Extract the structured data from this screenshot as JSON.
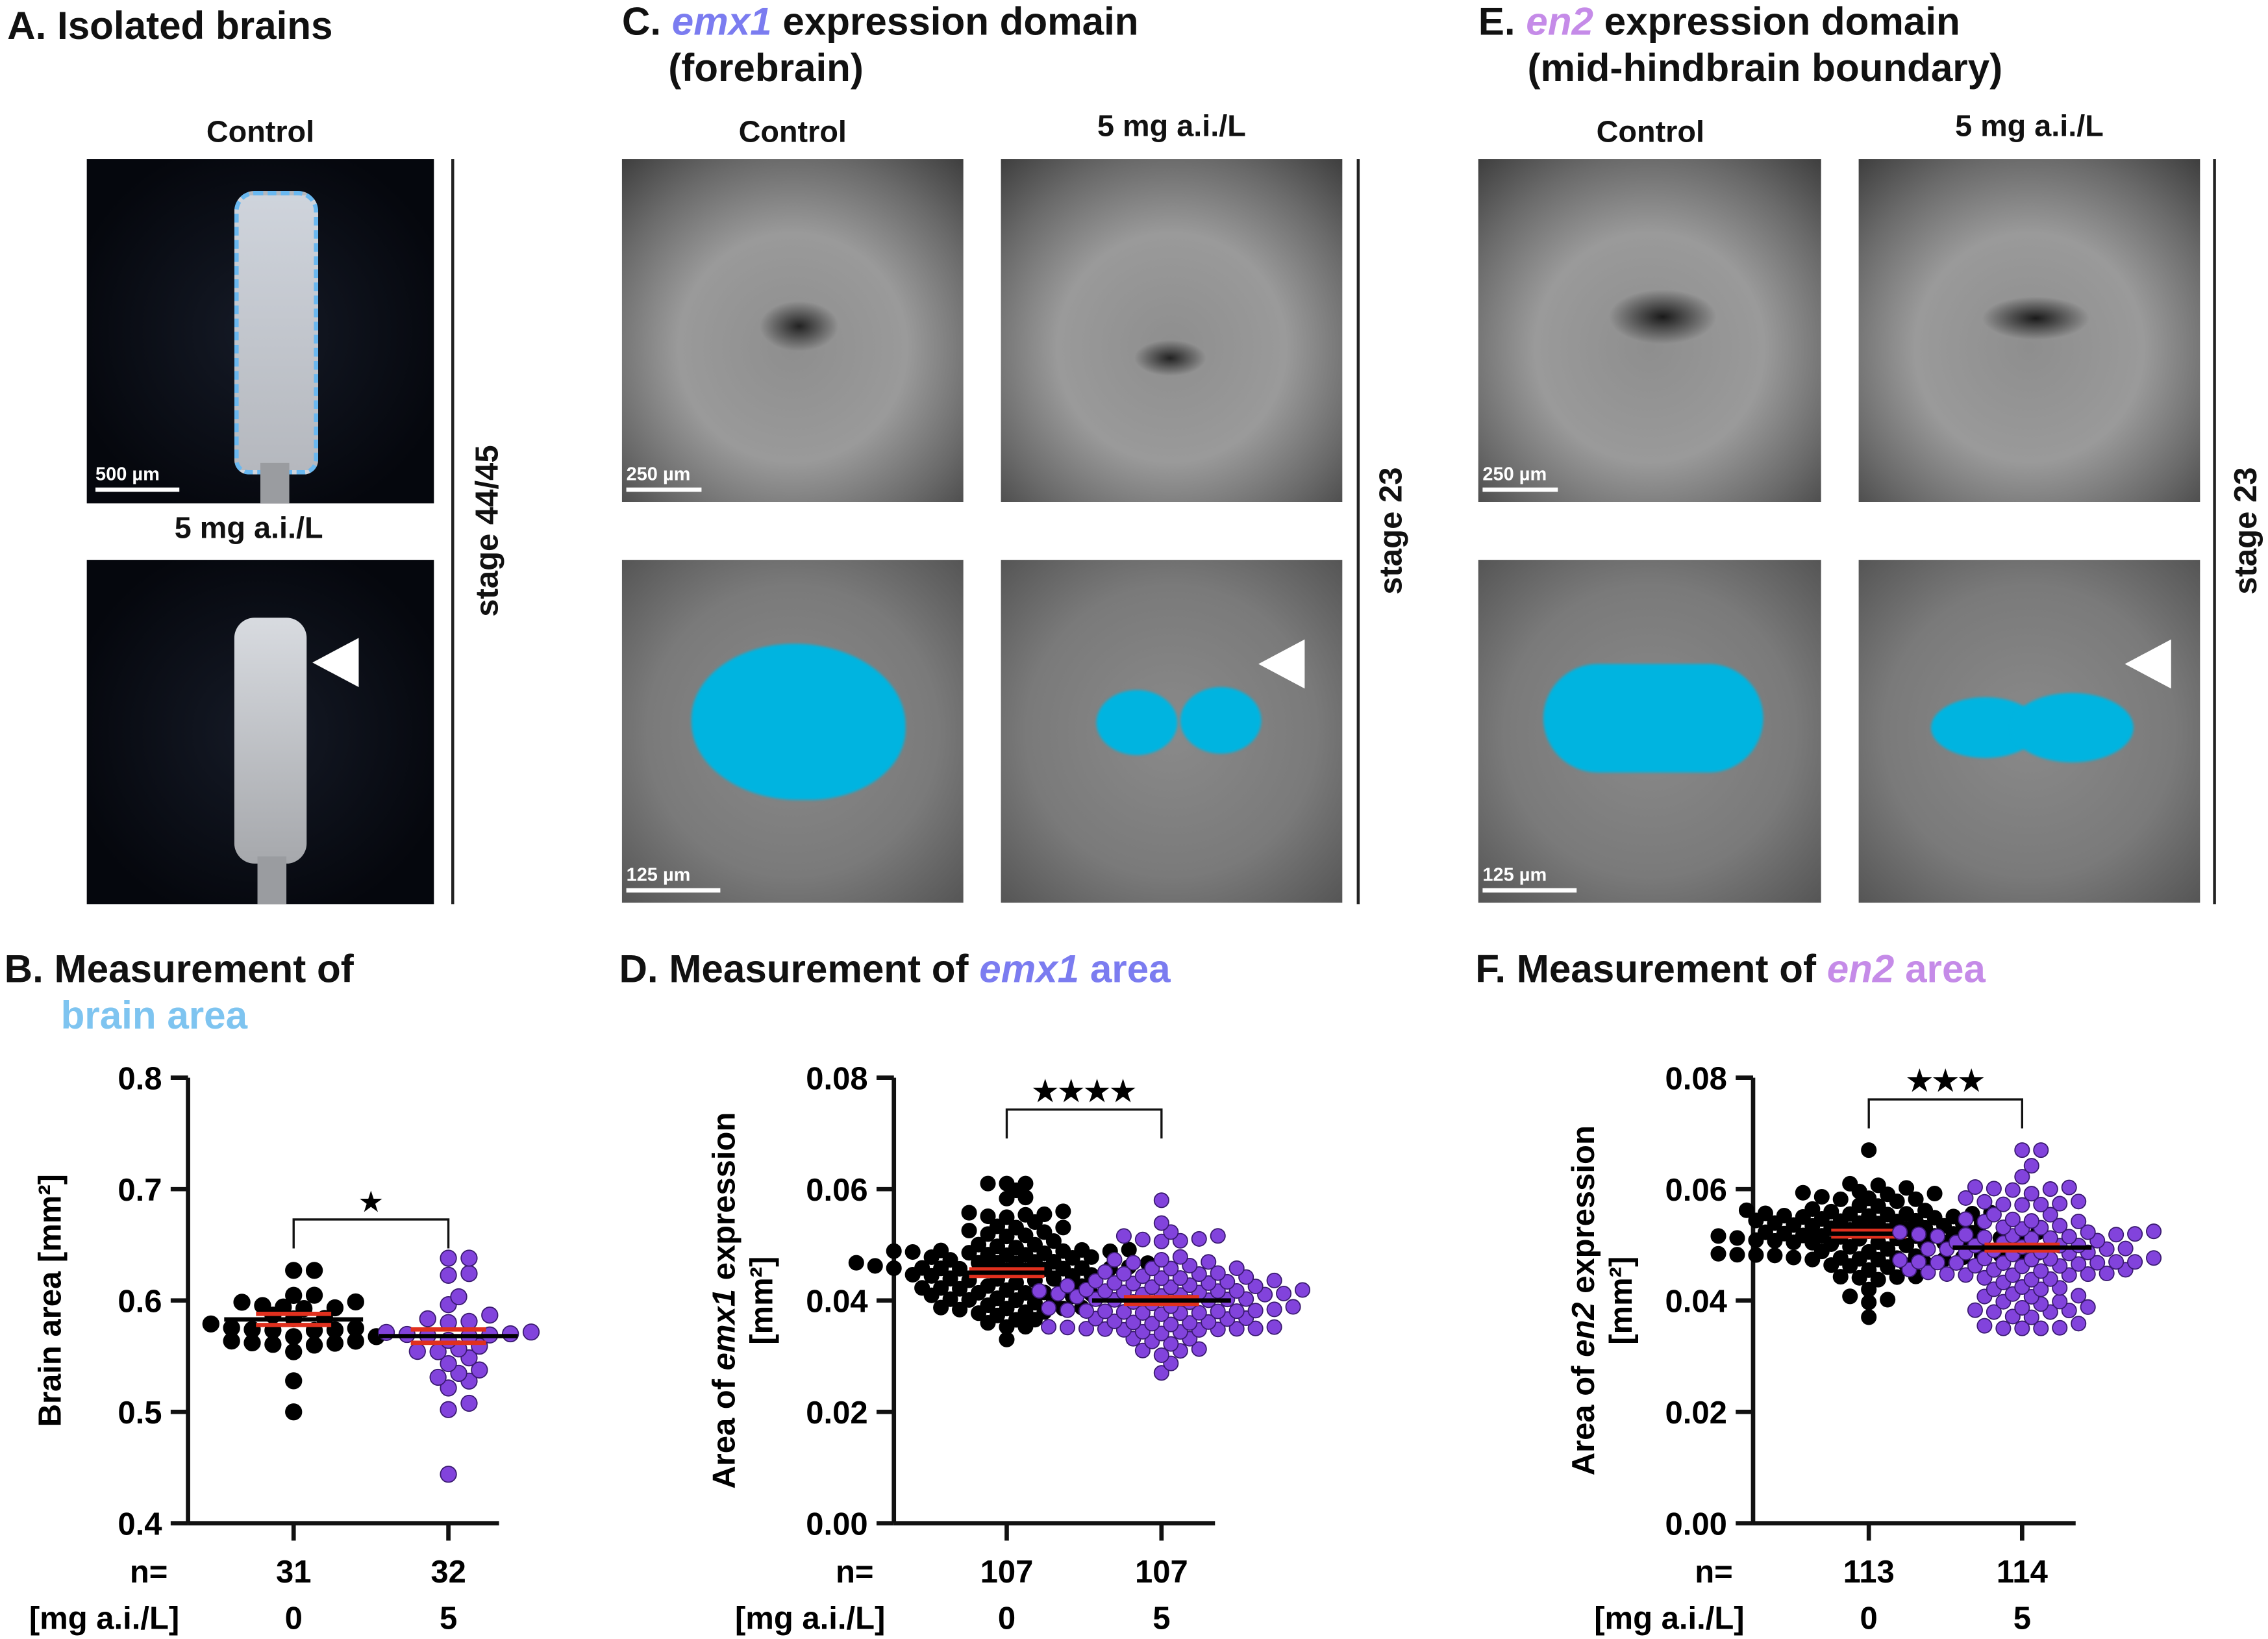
{
  "panelA": {
    "title": "A. Isolated brains",
    "label_control": "Control",
    "label_treated": "5 mg a.i./L",
    "scale_bar": "500 µm",
    "stage": "stage 44/45"
  },
  "panelC": {
    "title_prefix": "C. ",
    "gene": "emx1",
    "title_suffix": " expression domain",
    "title_line2": "(forebrain)",
    "label_control": "Control",
    "label_treated": "5 mg a.i./L",
    "scale_bar_top": "250 µm",
    "scale_bar_bottom": "125 µm",
    "stage": "stage 23"
  },
  "panelE": {
    "title_prefix": "E. ",
    "gene": "en2",
    "title_suffix": " expression domain",
    "title_line2": "(mid-hindbrain boundary)",
    "label_control": "Control",
    "label_treated": "5 mg a.i./L",
    "scale_bar_top": "250 µm",
    "scale_bar_bottom": "125 µm",
    "stage": "stage 23"
  },
  "colors": {
    "brain_area": "#7ec4f0",
    "emx1": "#7b7cf0",
    "en2": "#c58be8",
    "treated_points": "#8243dc",
    "control_points": "#000000",
    "mean_sem": "#e0301e",
    "overlay": "#00b4e0"
  },
  "panelB": {
    "title_line1": "B. Measurement of",
    "title_line2": "brain area"
  },
  "panelD": {
    "title_prefix": "D. Measurement of ",
    "gene": "emx1",
    "title_suffix": " area"
  },
  "panelF": {
    "title_prefix": "F. Measurement of ",
    "gene": "en2",
    "title_suffix": " area"
  },
  "chart_data": [
    {
      "type": "scatter",
      "ylabel": "Brain area [mm²]",
      "ylim": [
        0.4,
        0.8
      ],
      "yticks": [
        "0.4",
        "0.5",
        "0.6",
        "0.7",
        "0.8"
      ],
      "n_label": "n=",
      "dose_label": "[mg a.i./L]",
      "significance": "★",
      "groups": [
        {
          "dose": "0",
          "n": "31",
          "mean": 0.583,
          "sem": 0.005,
          "sd": 0.027,
          "min": 0.5,
          "max": 0.627
        },
        {
          "dose": "5",
          "n": "32",
          "mean": 0.568,
          "sem": 0.006,
          "sd": 0.032,
          "min": 0.444,
          "max": 0.638
        }
      ]
    },
    {
      "type": "scatter",
      "ylabel_prefix": "Area of ",
      "ylabel_gene": "emx1",
      "ylabel_suffix": " expression",
      "ylabel_line2": "[mm²]",
      "ylim": [
        0,
        0.08
      ],
      "yticks": [
        "0.00",
        "0.02",
        "0.04",
        "0.06",
        "0.08"
      ],
      "n_label": "n=",
      "dose_label": "[mg a.i./L]",
      "significance": "★★★★",
      "groups": [
        {
          "dose": "0",
          "n": "107",
          "mean": 0.045,
          "sem": 0.0006,
          "sd": 0.006,
          "min": 0.033,
          "max": 0.061
        },
        {
          "dose": "5",
          "n": "107",
          "mean": 0.04,
          "sem": 0.0006,
          "sd": 0.006,
          "min": 0.027,
          "max": 0.058
        }
      ]
    },
    {
      "type": "scatter",
      "ylabel_prefix": "Area of ",
      "ylabel_gene": "en2",
      "ylabel_suffix": " expression",
      "ylabel_line2": "[mm²]",
      "ylim": [
        0,
        0.08
      ],
      "yticks": [
        "0.00",
        "0.02",
        "0.04",
        "0.06",
        "0.08"
      ],
      "n_label": "n=",
      "dose_label": "[mg a.i./L]",
      "significance": "★★★",
      "groups": [
        {
          "dose": "0",
          "n": "113",
          "mean": 0.052,
          "sem": 0.0005,
          "sd": 0.005,
          "min": 0.037,
          "max": 0.067
        },
        {
          "dose": "5",
          "n": "114",
          "mean": 0.0495,
          "sem": 0.0005,
          "sd": 0.006,
          "min": 0.035,
          "max": 0.067
        }
      ]
    }
  ]
}
